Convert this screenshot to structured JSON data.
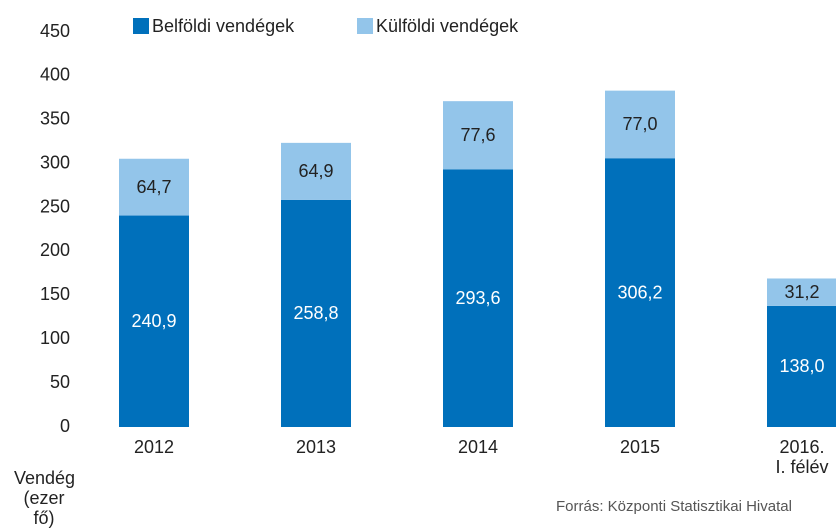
{
  "chart_data": {
    "type": "stacked_bar",
    "categories": [
      "2012",
      "2013",
      "2014",
      "2015",
      "2016.\nI. félév"
    ],
    "series": [
      {
        "name": "Belföldi vendégek",
        "color": "#0070bb",
        "values": [
          240.9,
          258.8,
          293.6,
          306.2,
          138.0
        ],
        "value_labels": [
          "240,9",
          "258,8",
          "293,6",
          "306,2",
          "138,0"
        ]
      },
      {
        "name": "Külföldi vendégek",
        "color": "#93c5ea",
        "values": [
          64.7,
          64.9,
          77.6,
          77.0,
          31.2
        ],
        "value_labels": [
          "64,7",
          "64,9",
          "77,6",
          "77,0",
          "31,2"
        ]
      }
    ],
    "ylabel": "Vendég\n(ezer fő)",
    "source": "Forrás: Központi Statisztikai Hivatal",
    "ylim": [
      0,
      450
    ],
    "yticks": [
      0,
      50,
      100,
      150,
      200,
      250,
      300,
      350,
      400,
      450
    ],
    "legend": "top"
  }
}
